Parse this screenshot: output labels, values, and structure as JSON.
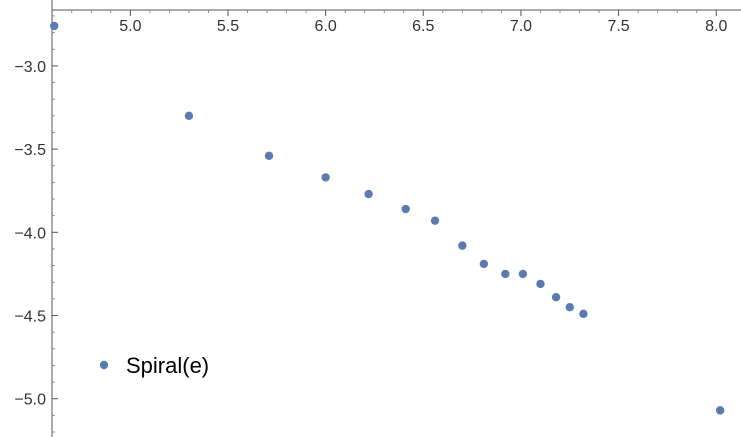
{
  "chart_data": {
    "type": "scatter",
    "title": "",
    "xlabel": "",
    "ylabel": "",
    "xlim": [
      4.65,
      8.05
    ],
    "ylim": [
      -5.2,
      -2.64
    ],
    "x_ticks": [
      5.0,
      5.5,
      6.0,
      6.5,
      7.0,
      7.5,
      8.0
    ],
    "x_tick_labels": [
      "5.0",
      "5.5",
      "6.0",
      "6.5",
      "7.0",
      "7.5",
      "8.0"
    ],
    "y_ticks": [
      -3.0,
      -3.5,
      -4.0,
      -4.5,
      -5.0
    ],
    "y_tick_labels": [
      "−3.0",
      "−3.5",
      "−4.0",
      "−4.5",
      "−5.0"
    ],
    "grid": false,
    "legend_position": "bottom-left",
    "series": [
      {
        "name": "Spiral(e)",
        "color": "#5b7bb0",
        "points": [
          [
            4.61,
            -2.76
          ],
          [
            5.3,
            -3.3
          ],
          [
            5.71,
            -3.54
          ],
          [
            6.0,
            -3.67
          ],
          [
            6.22,
            -3.77
          ],
          [
            6.41,
            -3.86
          ],
          [
            6.56,
            -3.93
          ],
          [
            6.7,
            -4.08
          ],
          [
            6.81,
            -4.19
          ],
          [
            6.92,
            -4.25
          ],
          [
            7.01,
            -4.25
          ],
          [
            7.1,
            -4.31
          ],
          [
            7.18,
            -4.39
          ],
          [
            7.25,
            -4.45
          ],
          [
            7.32,
            -4.49
          ],
          [
            8.02,
            -5.07
          ]
        ]
      }
    ]
  }
}
